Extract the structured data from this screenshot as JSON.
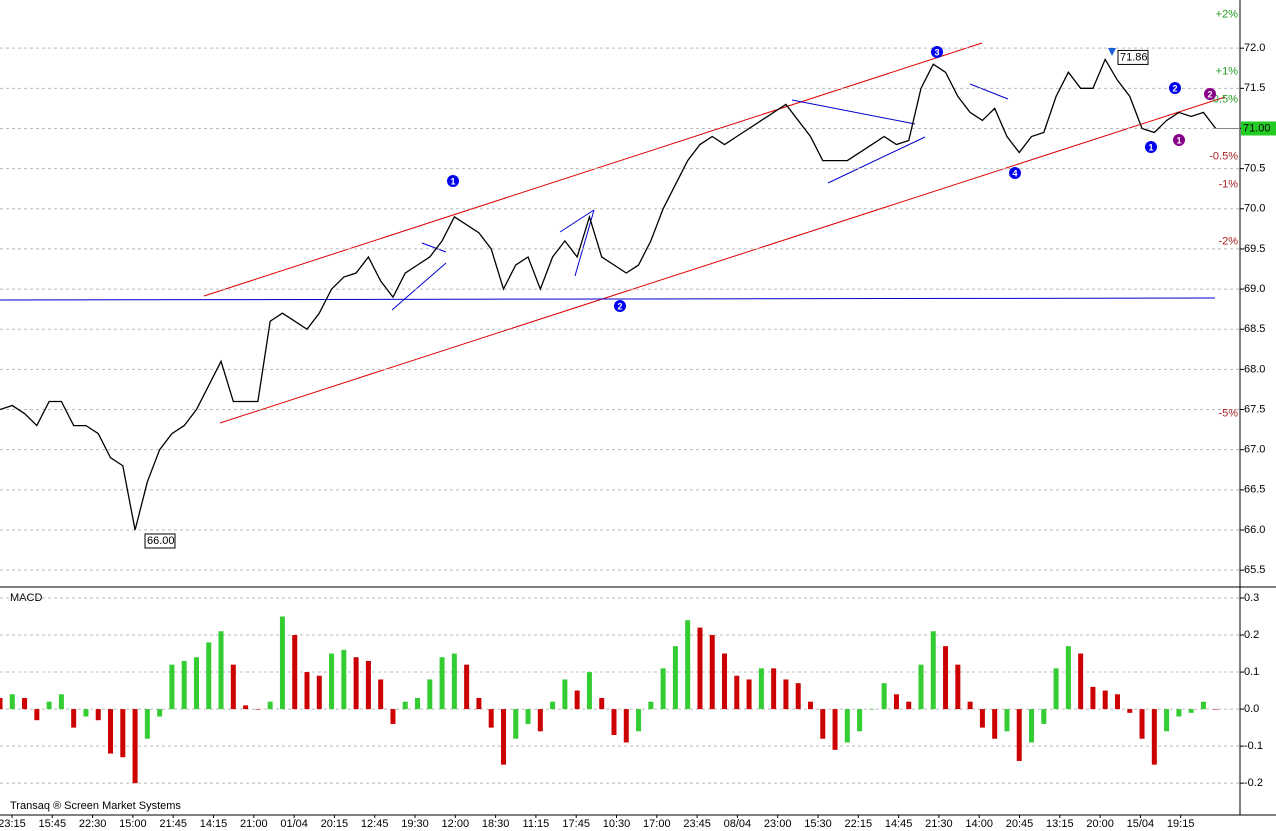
{
  "chart_data": [
    {
      "type": "line",
      "values": [
        67.5,
        67.55,
        67.45,
        67.3,
        67.6,
        67.6,
        67.3,
        67.3,
        67.2,
        66.9,
        66.8,
        66.0,
        66.6,
        67.0,
        67.2,
        67.3,
        67.5,
        67.8,
        68.1,
        67.6,
        67.6,
        67.6,
        68.6,
        68.7,
        68.6,
        68.5,
        68.7,
        69.0,
        69.15,
        69.2,
        69.4,
        69.1,
        68.9,
        69.2,
        69.3,
        69.4,
        69.6,
        69.9,
        69.8,
        69.7,
        69.5,
        69.0,
        69.3,
        69.4,
        69.0,
        69.4,
        69.6,
        69.4,
        69.9,
        69.4,
        69.3,
        69.2,
        69.3,
        69.6,
        70.0,
        70.3,
        70.6,
        70.8,
        70.9,
        70.8,
        70.9,
        71.0,
        71.1,
        71.2,
        71.3,
        71.1,
        70.9,
        70.6,
        70.6,
        70.6,
        70.7,
        70.8,
        70.9,
        70.8,
        70.85,
        71.5,
        71.8,
        71.7,
        71.4,
        71.2,
        71.1,
        71.25,
        70.9,
        70.7,
        70.9,
        70.95,
        71.4,
        71.7,
        71.5,
        71.5,
        71.86,
        71.6,
        71.4,
        71.0,
        70.95,
        71.1,
        71.2,
        71.15,
        71.2,
        71.0
      ],
      "color": "#000000",
      "ylim": [
        65.29,
        72.6
      ],
      "yticks": [
        {
          "value": 72,
          "label": "72.0"
        },
        71.5,
        {
          "value": 71,
          "label": "71.0"
        },
        70.5,
        {
          "value": 70,
          "label": "70.0"
        },
        69.5,
        {
          "value": 69,
          "label": "69.0"
        },
        68.5,
        {
          "value": 68,
          "label": "68.0"
        },
        67.5,
        {
          "value": 67,
          "label": "67.0"
        },
        66.5,
        {
          "value": 66,
          "label": "66.0"
        },
        65.5
      ],
      "grid": true,
      "annotations": [
        {
          "value": 66.0,
          "label": "66.00"
        },
        {
          "value": 71.86,
          "label": "71.86"
        }
      ],
      "last": {
        "value": 71.0,
        "label": "71.00",
        "color": "#22cc22"
      },
      "pct_levels": [
        {
          "value": 72.42,
          "label": "+2%",
          "color": "#229922"
        },
        {
          "value": 71.71,
          "label": "+1%",
          "color": "#229922"
        },
        {
          "value": 71.36,
          "label": "0.5%",
          "color": "#229922"
        },
        {
          "value": 70.65,
          "label": "-0.5%",
          "color": "#aa2222"
        },
        {
          "value": 70.3,
          "label": "-1%",
          "color": "#aa2222"
        },
        {
          "value": 69.59,
          "label": "-2%",
          "color": "#aa2222"
        },
        {
          "value": 67.45,
          "label": "-5%",
          "color": "#aa2222"
        }
      ],
      "waves": [
        {
          "label": "1",
          "color": "#0000ee"
        },
        {
          "label": "2",
          "color": "#0000ee"
        },
        {
          "label": "3",
          "color": "#0000ee"
        },
        {
          "label": "4",
          "color": "#0000ee"
        },
        {
          "label": "1",
          "color": "#0000ee"
        },
        {
          "label": "2",
          "color": "#0000ee"
        },
        {
          "label": "1",
          "color": "#880088"
        },
        {
          "label": "2",
          "color": "#880088"
        }
      ]
    },
    {
      "type": "bar",
      "title": "MACD",
      "values": [
        0.03,
        0.04,
        0.03,
        -0.03,
        0.02,
        0.04,
        -0.05,
        -0.02,
        -0.03,
        -0.12,
        -0.13,
        -0.2,
        -0.08,
        -0.02,
        0.12,
        0.13,
        0.14,
        0.18,
        0.21,
        0.12,
        0.01,
        0.0,
        0.02,
        0.25,
        0.2,
        0.1,
        0.09,
        0.15,
        0.16,
        0.14,
        0.13,
        0.08,
        -0.04,
        0.02,
        0.03,
        0.08,
        0.14,
        0.15,
        0.12,
        0.03,
        -0.05,
        -0.15,
        -0.08,
        -0.04,
        -0.06,
        0.02,
        0.08,
        0.05,
        0.1,
        0.03,
        -0.07,
        -0.09,
        -0.06,
        0.02,
        0.11,
        0.17,
        0.24,
        0.22,
        0.2,
        0.15,
        0.09,
        0.08,
        0.11,
        0.11,
        0.08,
        0.07,
        0.02,
        -0.08,
        -0.11,
        -0.09,
        -0.06,
        0.0,
        0.07,
        0.04,
        0.02,
        0.12,
        0.21,
        0.17,
        0.12,
        0.02,
        -0.05,
        -0.08,
        -0.06,
        -0.14,
        -0.09,
        -0.04,
        0.11,
        0.17,
        0.15,
        0.06,
        0.05,
        0.04,
        -0.01,
        -0.08,
        -0.15,
        -0.06,
        -0.02,
        -0.01,
        0.02,
        0.0
      ],
      "colors": {
        "up": "#33cc33",
        "down": "#cc0000"
      },
      "ylim": [
        -0.286,
        0.327
      ],
      "yticks": [
        0.3,
        0.2,
        0.1,
        {
          "value": 0,
          "label": "0.0"
        },
        -0.1,
        -0.2
      ],
      "grid": true
    }
  ],
  "x_axis": {
    "labels": [
      "23:15",
      "15:45",
      "22:30",
      "15:00",
      "21:45",
      "14:15",
      "21:00",
      "01/04",
      "20:15",
      "12:45",
      "19:30",
      "12:00",
      "18:30",
      "11:15",
      "17:45",
      "10:30",
      "17:00",
      "23:45",
      "08/04",
      "23:00",
      "15:30",
      "22:15",
      "14:45",
      "21:30",
      "14:00",
      "20:45",
      "13:15",
      "20:00",
      "15/04",
      "19:15"
    ]
  },
  "footer": "Transaq ® Screen Market Systems"
}
